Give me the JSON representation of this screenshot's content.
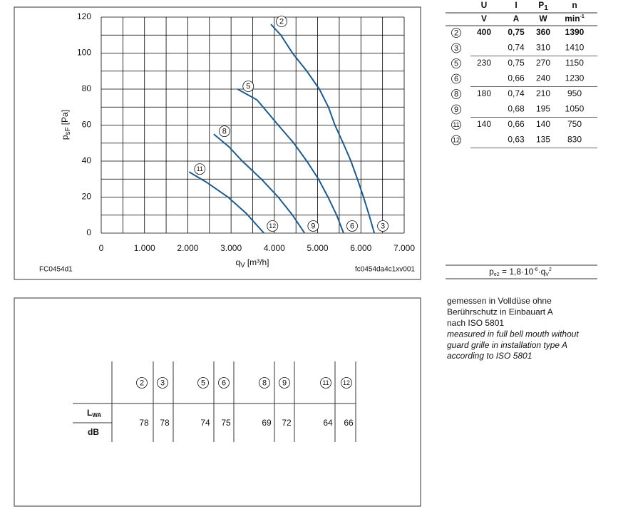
{
  "chart_data": {
    "type": "line",
    "ylabel": {
      "main": "p",
      "sub": "sF",
      "unit": "[Pa]"
    },
    "xlabel": {
      "main": "q",
      "sub": "V",
      "unit": "[m³/h]"
    },
    "code_left": "FC0454d1",
    "code_right": "fc0454da4c1xv001",
    "xlim": [
      0,
      7000
    ],
    "ylim": [
      0,
      120
    ],
    "xticks": [
      0,
      {
        "value": 1000,
        "label": "1.000"
      },
      {
        "value": 2000,
        "label": "2.000"
      },
      {
        "value": 3000,
        "label": "3.000"
      },
      {
        "value": 4000,
        "label": "4.000"
      },
      {
        "value": 5000,
        "label": "5.000"
      },
      {
        "value": 6000,
        "label": "6.000"
      },
      {
        "value": 7000,
        "label": "7.000"
      }
    ],
    "yticks": [
      0,
      20,
      40,
      60,
      80,
      100,
      120
    ],
    "xgrid": [
      500,
      1500,
      2500,
      3500,
      4500,
      5500,
      6500
    ],
    "ygrid": [
      10,
      30,
      50,
      70,
      90,
      110
    ],
    "grid": true,
    "series": [
      {
        "name": "2",
        "end_name": "3",
        "color": "#1f5a8a",
        "x": [
          3920,
          4150,
          4420,
          4750,
          5040,
          5250,
          5400,
          5590,
          5770,
          5920,
          6060,
          6190,
          6310
        ],
        "values": [
          116,
          110,
          100,
          90,
          80,
          70,
          60,
          50,
          40,
          30,
          20,
          10,
          0
        ]
      },
      {
        "name": "5",
        "end_name": "6",
        "color": "#1f5a8a",
        "x": [
          3150,
          3600,
          4090,
          4450,
          4750,
          5020,
          5240,
          5440,
          5600
        ],
        "values": [
          80,
          74,
          60,
          50,
          40,
          30,
          20,
          10,
          0
        ]
      },
      {
        "name": "8",
        "end_name": "9",
        "color": "#1f5a8a",
        "x": [
          2600,
          2950,
          3260,
          3700,
          4090,
          4420,
          4700
        ],
        "values": [
          55,
          48,
          40,
          30,
          20,
          10,
          0
        ]
      },
      {
        "name": "11",
        "end_name": "12",
        "color": "#1f5a8a",
        "x": [
          2030,
          2450,
          2930,
          3350,
          3760
        ],
        "values": [
          34,
          28,
          20,
          11,
          0
        ]
      }
    ]
  },
  "data_table": {
    "headers": [
      {
        "sym": "U",
        "unit": "V"
      },
      {
        "sym": "I",
        "unit": "A"
      },
      {
        "sym": "P",
        "sub": "1",
        "unit": "W"
      },
      {
        "sym": "n",
        "unit": "min",
        "sup": "-1"
      }
    ],
    "rows": [
      {
        "id": "2",
        "U": 400,
        "I": "0,75",
        "P": 360,
        "n": 1390
      },
      {
        "id": "3",
        "I": "0,74",
        "P": 310,
        "n": 1410
      },
      {
        "id": "5",
        "U": 230,
        "I": "0,75",
        "P": 270,
        "n": 1150
      },
      {
        "id": "6",
        "I": "0,66",
        "P": 240,
        "n": 1230
      },
      {
        "id": "8",
        "U": 180,
        "I": "0,74",
        "P": 210,
        "n": 950
      },
      {
        "id": "9",
        "I": "0,68",
        "P": 195,
        "n": 1050
      },
      {
        "id": "11",
        "U": 140,
        "I": "0,66",
        "P": 140,
        "n": 750
      },
      {
        "id": "12",
        "I": "0,63",
        "P": 135,
        "n": 830
      }
    ]
  },
  "formula": {
    "lhs": "p",
    "lhs_sub": "e2",
    "mid": " = 1,8·10",
    "exp": "-6",
    "dot": "·q",
    "var_sub": "V",
    "sq": "2"
  },
  "notes": [
    "gemessen in Volldüse ohne",
    "Berührschutz in Einbauart A",
    "nach ISO 5801",
    "measured in full bell mouth without",
    "guard grille in installation type A",
    "according to ISO 5801"
  ],
  "sound_table": {
    "label": "L",
    "label_sub": "WA",
    "unit": "dB",
    "ids": [
      "2",
      "3",
      "5",
      "6",
      "8",
      "9",
      "11",
      "12"
    ],
    "values": [
      78,
      78,
      74,
      75,
      69,
      72,
      64,
      66
    ]
  }
}
